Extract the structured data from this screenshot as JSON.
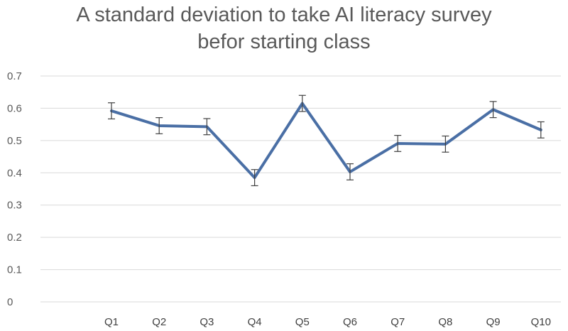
{
  "chart_data": {
    "type": "line",
    "title_lines": [
      "A standard deviation to take AI literacy survey",
      "befor starting class"
    ],
    "categories": [
      "Q1",
      "Q2",
      "Q3",
      "Q4",
      "Q5",
      "Q6",
      "Q7",
      "Q8",
      "Q9",
      "Q10"
    ],
    "values": [
      0.592,
      0.546,
      0.543,
      0.385,
      0.615,
      0.403,
      0.491,
      0.489,
      0.596,
      0.533
    ],
    "error": 0.025,
    "ylim": [
      0,
      0.7
    ],
    "yticks": [
      "0",
      "0.1",
      "0.2",
      "0.3",
      "0.4",
      "0.5",
      "0.6",
      "0.7"
    ],
    "grid": true,
    "series_color": "#4a6fa5",
    "grid_color": "#d9d9d9"
  }
}
